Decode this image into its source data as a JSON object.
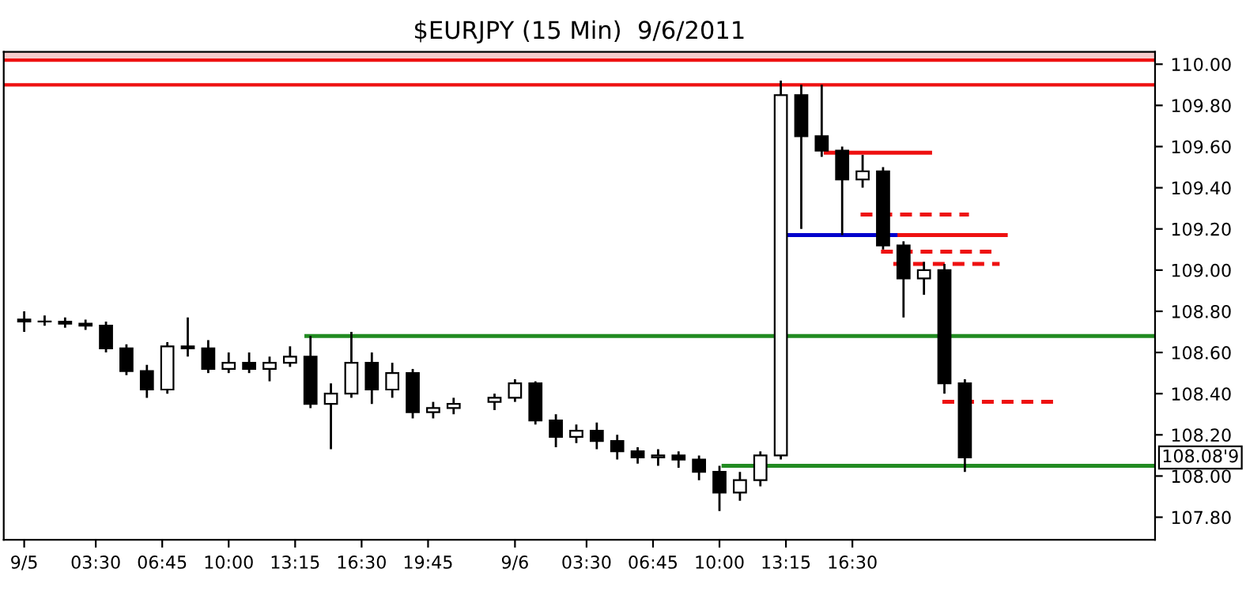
{
  "chart_data": {
    "type": "candlestick",
    "title": "$EURJPY (15 Min)  9/6/2011",
    "x": [
      "2011-09-05T00:00",
      "2011-09-05T01:00",
      "2011-09-05T02:00",
      "2011-09-05T03:00",
      "2011-09-05T04:00",
      "2011-09-05T05:00",
      "2011-09-05T06:00",
      "2011-09-05T07:00",
      "2011-09-05T08:00",
      "2011-09-05T09:00",
      "2011-09-05T10:00",
      "2011-09-05T11:00",
      "2011-09-05T12:00",
      "2011-09-05T13:00",
      "2011-09-05T14:00",
      "2011-09-05T15:00",
      "2011-09-05T16:00",
      "2011-09-05T17:00",
      "2011-09-05T18:00",
      "2011-09-05T19:00",
      "2011-09-05T20:00",
      "2011-09-05T21:00",
      "2011-09-05T23:00",
      "2011-09-06T00:00",
      "2011-09-06T01:00",
      "2011-09-06T02:00",
      "2011-09-06T03:00",
      "2011-09-06T04:00",
      "2011-09-06T05:00",
      "2011-09-06T06:00",
      "2011-09-06T07:00",
      "2011-09-06T08:00",
      "2011-09-06T09:00",
      "2011-09-06T10:00",
      "2011-09-06T11:00",
      "2011-09-06T12:00",
      "2011-09-06T13:00",
      "2011-09-06T14:00",
      "2011-09-06T15:00",
      "2011-09-06T16:00",
      "2011-09-06T17:00",
      "2011-09-06T18:00",
      "2011-09-06T19:00",
      "2011-09-06T20:00",
      "2011-09-06T21:00",
      "2011-09-06T22:00"
    ],
    "ohlc": [
      [
        108.76,
        108.8,
        108.7,
        108.75
      ],
      [
        108.75,
        108.78,
        108.73,
        108.75
      ],
      [
        108.75,
        108.77,
        108.72,
        108.74
      ],
      [
        108.74,
        108.76,
        108.71,
        108.73
      ],
      [
        108.73,
        108.75,
        108.6,
        108.62
      ],
      [
        108.62,
        108.64,
        108.49,
        108.51
      ],
      [
        108.51,
        108.54,
        108.38,
        108.42
      ],
      [
        108.42,
        108.65,
        108.4,
        108.63
      ],
      [
        108.63,
        108.77,
        108.58,
        108.62
      ],
      [
        108.62,
        108.66,
        108.5,
        108.52
      ],
      [
        108.52,
        108.6,
        108.5,
        108.55
      ],
      [
        108.55,
        108.6,
        108.5,
        108.52
      ],
      [
        108.52,
        108.58,
        108.46,
        108.55
      ],
      [
        108.55,
        108.63,
        108.53,
        108.58
      ],
      [
        108.58,
        108.68,
        108.33,
        108.35
      ],
      [
        108.35,
        108.45,
        108.13,
        108.4
      ],
      [
        108.4,
        108.7,
        108.38,
        108.55
      ],
      [
        108.55,
        108.6,
        108.35,
        108.42
      ],
      [
        108.42,
        108.55,
        108.38,
        108.5
      ],
      [
        108.5,
        108.52,
        108.28,
        108.31
      ],
      [
        108.31,
        108.36,
        108.28,
        108.33
      ],
      [
        108.33,
        108.38,
        108.3,
        108.35
      ],
      [
        108.36,
        108.4,
        108.32,
        108.38
      ],
      [
        108.38,
        108.47,
        108.36,
        108.45
      ],
      [
        108.45,
        108.46,
        108.25,
        108.27
      ],
      [
        108.27,
        108.3,
        108.14,
        108.19
      ],
      [
        108.19,
        108.25,
        108.16,
        108.22
      ],
      [
        108.22,
        108.26,
        108.13,
        108.17
      ],
      [
        108.17,
        108.2,
        108.08,
        108.12
      ],
      [
        108.12,
        108.14,
        108.06,
        108.09
      ],
      [
        108.09,
        108.13,
        108.05,
        108.1
      ],
      [
        108.1,
        108.12,
        108.04,
        108.08
      ],
      [
        108.08,
        108.1,
        107.98,
        108.02
      ],
      [
        108.02,
        108.05,
        107.83,
        107.92
      ],
      [
        107.92,
        108.02,
        107.88,
        107.98
      ],
      [
        107.98,
        108.12,
        107.95,
        108.1
      ],
      [
        108.1,
        109.92,
        108.08,
        109.85
      ],
      [
        109.85,
        109.9,
        109.2,
        109.65
      ],
      [
        109.65,
        109.9,
        109.55,
        109.58
      ],
      [
        109.58,
        109.6,
        109.17,
        109.44
      ],
      [
        109.44,
        109.56,
        109.4,
        109.48
      ],
      [
        109.48,
        109.5,
        109.1,
        109.12
      ],
      [
        109.12,
        109.14,
        108.77,
        108.96
      ],
      [
        108.96,
        109.04,
        108.88,
        109.0
      ],
      [
        109.0,
        109.03,
        108.4,
        108.45
      ],
      [
        108.45,
        108.47,
        108.02,
        108.09
      ]
    ],
    "series": [
      {
        "type": "line",
        "color": "#228b22",
        "line_style": "solid",
        "x": [
          "2011-09-05T13:48",
          "2011-09-07T07:18"
        ],
        "values": [
          108.68,
          108.68
        ]
      },
      {
        "type": "line",
        "color": "#228b22",
        "line_style": "solid",
        "x": [
          "2011-09-06T10:12",
          "2011-09-07T07:18"
        ],
        "values": [
          108.05,
          108.05
        ]
      },
      {
        "type": "line",
        "color": "#0000cc",
        "line_style": "solid",
        "x": [
          "2011-09-06T13:06",
          "2011-09-06T18:48"
        ],
        "values": [
          109.17,
          109.17
        ]
      },
      {
        "type": "line",
        "color": "#ee1111",
        "line_style": "solid",
        "x": [
          "2011-09-06T18:48",
          "2011-09-07T00:00"
        ],
        "values": [
          109.17,
          109.17
        ]
      },
      {
        "type": "line",
        "color": "#ee1111",
        "line_style": "solid",
        "x": [
          "2011-09-06T15:12",
          "2011-09-06T20:18"
        ],
        "values": [
          109.57,
          109.57
        ]
      },
      {
        "type": "line",
        "color": "#ee1111",
        "line_style": "dashed",
        "x": [
          "2011-09-06T16:54",
          "2011-09-06T22:12"
        ],
        "values": [
          109.27,
          109.27
        ]
      },
      {
        "type": "line",
        "color": "#ee1111",
        "line_style": "dashed",
        "x": [
          "2011-09-06T17:54",
          "2011-09-06T23:18"
        ],
        "values": [
          109.09,
          109.09
        ]
      },
      {
        "type": "line",
        "color": "#ee1111",
        "line_style": "dashed",
        "x": [
          "2011-09-06T18:30",
          "2011-09-06T23:42"
        ],
        "values": [
          109.03,
          109.03
        ]
      },
      {
        "type": "line",
        "color": "#ee1111",
        "line_style": "dashed",
        "x": [
          "2011-09-06T20:54",
          "2011-09-07T02:24"
        ],
        "values": [
          108.36,
          108.36
        ]
      }
    ],
    "ref_lines": [
      {
        "axis": "y",
        "value": 109.9,
        "color": "#ee1111"
      },
      {
        "axis": "y",
        "value": 110.02,
        "color": "#ee1111"
      }
    ],
    "bands": [
      {
        "axis": "y",
        "from": 110.02,
        "to": 110.06,
        "color": "#f6cccc"
      }
    ],
    "annotations": [
      "108.08'9"
    ],
    "xlim": [
      "2011-09-04T23:00",
      "2011-09-07T07:18"
    ],
    "ylim": [
      107.69,
      110.06
    ],
    "xticks": [
      {
        "value": "2011-09-05T00:00",
        "label": "9/5"
      },
      {
        "value": "2011-09-05T03:30",
        "label": "03:30"
      },
      {
        "value": "2011-09-05T06:45",
        "label": "06:45"
      },
      {
        "value": "2011-09-05T10:00",
        "label": "10:00"
      },
      {
        "value": "2011-09-05T13:15",
        "label": "13:15"
      },
      {
        "value": "2011-09-05T16:30",
        "label": "16:30"
      },
      {
        "value": "2011-09-05T19:45",
        "label": "19:45"
      },
      {
        "value": "2011-09-06T00:00",
        "label": "9/6"
      },
      {
        "value": "2011-09-06T03:30",
        "label": "03:30"
      },
      {
        "value": "2011-09-06T06:45",
        "label": "06:45"
      },
      {
        "value": "2011-09-06T10:00",
        "label": "10:00"
      },
      {
        "value": "2011-09-06T13:15",
        "label": "13:15"
      },
      {
        "value": "2011-09-06T16:30",
        "label": "16:30"
      }
    ],
    "yticks": [
      {
        "value": 107.8,
        "label": "107.80"
      },
      {
        "value": 108.0,
        "label": "108.00"
      },
      {
        "value": 108.2,
        "label": "108.20"
      },
      {
        "value": 108.4,
        "label": "108.40"
      },
      {
        "value": 108.6,
        "label": "108.60"
      },
      {
        "value": 108.8,
        "label": "108.80"
      },
      {
        "value": 109.0,
        "label": "109.00"
      },
      {
        "value": 109.2,
        "label": "109.20"
      },
      {
        "value": 109.4,
        "label": "109.40"
      },
      {
        "value": 109.6,
        "label": "109.60"
      },
      {
        "value": 109.8,
        "label": "109.80"
      },
      {
        "value": 110.0,
        "label": "110.00"
      }
    ],
    "grid": false,
    "legend": false
  }
}
